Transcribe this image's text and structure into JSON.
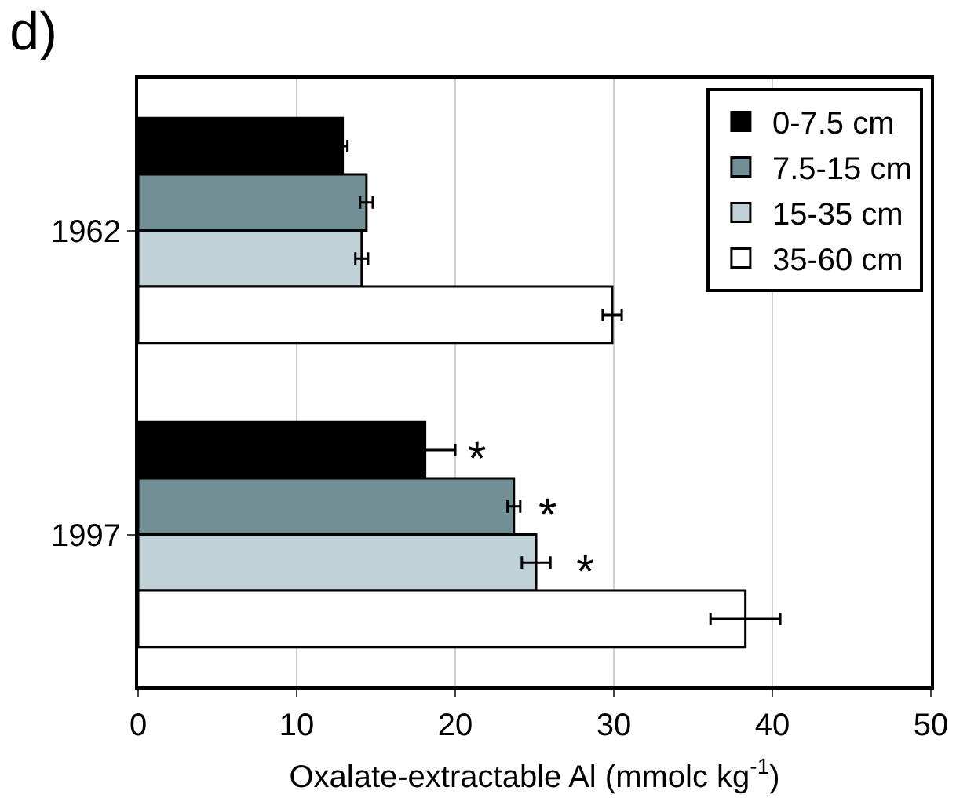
{
  "chart_data": {
    "type": "bar",
    "orientation": "horizontal",
    "title": "d)",
    "xlabel": "Oxalate-extractable Al (mmolc kg$^{-1}$)",
    "categories": [
      "1962",
      "1997"
    ],
    "series": [
      {
        "name": "0-7.5 cm",
        "color": "#000000",
        "values": [
          12.9,
          18.1
        ],
        "errors": [
          0.3,
          1.9
        ]
      },
      {
        "name": "7.5-15 cm",
        "color": "#718f95",
        "values": [
          14.4,
          23.7
        ],
        "errors": [
          0.4,
          0.4
        ]
      },
      {
        "name": "15-35 cm",
        "color": "#c1d1d8",
        "values": [
          14.1,
          25.1
        ],
        "errors": [
          0.4,
          0.9
        ]
      },
      {
        "name": "35-60 cm",
        "color": "#ffffff",
        "values": [
          29.9,
          38.3
        ],
        "errors": [
          0.6,
          2.2
        ]
      }
    ],
    "annotations": [
      "*",
      "*",
      "*"
    ],
    "xlim": [
      0,
      50
    ],
    "xticks": [
      0,
      10,
      20,
      30,
      40,
      50
    ],
    "grid": "x",
    "legend": "top right"
  }
}
